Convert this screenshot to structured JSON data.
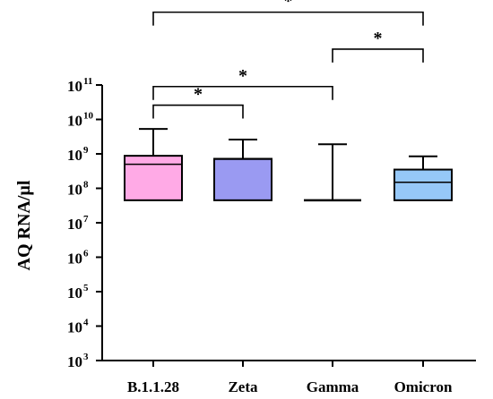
{
  "chart_data": {
    "type": "box",
    "ylabel": "AQ RNA/µl",
    "yscale": "log10",
    "ylim": [
      1000,
      100000000000
    ],
    "y_tick_labels": [
      {
        "base": "10",
        "exp": "3"
      },
      {
        "base": "10",
        "exp": "4"
      },
      {
        "base": "10",
        "exp": "5"
      },
      {
        "base": "10",
        "exp": "6"
      },
      {
        "base": "10",
        "exp": "7"
      },
      {
        "base": "10",
        "exp": "8"
      },
      {
        "base": "10",
        "exp": "9"
      },
      {
        "base": "10",
        "exp": "10"
      },
      {
        "base": "10",
        "exp": "11"
      }
    ],
    "categories": [
      "B.1.1.28",
      "Zeta",
      "Gamma",
      "Omicron"
    ],
    "boxes": [
      {
        "label": "B.1.1.28",
        "min": 45000000,
        "q1": 45000000,
        "median": 500000000,
        "q3": 880000000,
        "max": 5300000000,
        "color": "#ffaae6"
      },
      {
        "label": "Zeta",
        "min": 45000000,
        "q1": 45000000,
        "median": 700000000,
        "q3": 720000000,
        "max": 2600000000,
        "color": "#9a9af2"
      },
      {
        "label": "Gamma",
        "min": 45000000,
        "q1": 45000000,
        "median": 45000000,
        "q3": 45000000,
        "max": 1900000000,
        "color": "#ffffff"
      },
      {
        "label": "Omicron",
        "min": 45000000,
        "q1": 45000000,
        "median": 150000000,
        "q3": 350000000,
        "max": 850000000,
        "color": "#96c8f8"
      }
    ],
    "significance": [
      {
        "from": 0,
        "to": 1,
        "level": 26000000000,
        "label": "*"
      },
      {
        "from": 0,
        "to": 2,
        "level": 90000000000,
        "label": "*"
      },
      {
        "from": 2,
        "to": 3,
        "level": 1100000000000,
        "label": "*"
      },
      {
        "from": 0,
        "to": 3,
        "level": 13000000000000,
        "label": "*"
      }
    ],
    "grid": false
  }
}
